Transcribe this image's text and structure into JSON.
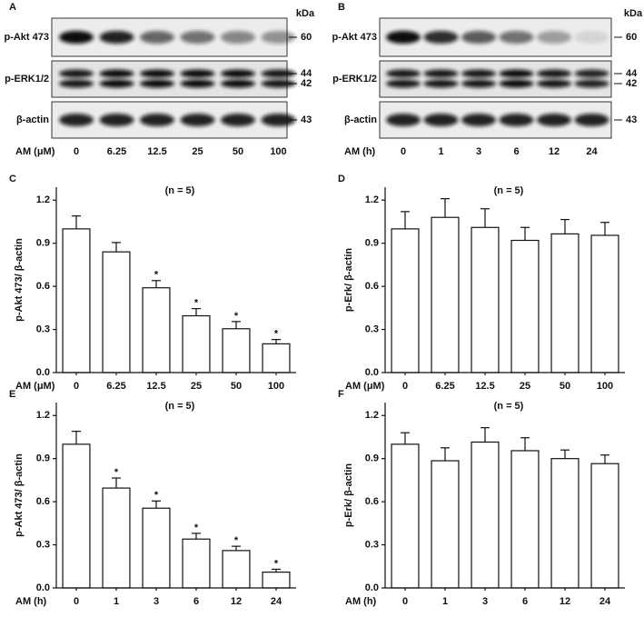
{
  "blots": [
    {
      "panel": "A",
      "unit": "kDa",
      "axis_label": "AM (μM)",
      "lanes": [
        "0",
        "6.25",
        "12.5",
        "25",
        "50",
        "100"
      ],
      "rows": [
        {
          "name": "p-Akt 473",
          "markers": [
            "60"
          ]
        },
        {
          "name": "p-ERK1/2",
          "markers": [
            "44",
            "42"
          ]
        },
        {
          "name": "β-actin",
          "markers": [
            "43"
          ]
        }
      ]
    },
    {
      "panel": "B",
      "unit": "kDa",
      "axis_label": "AM (h)",
      "lanes": [
        "0",
        "1",
        "3",
        "6",
        "12",
        "24"
      ],
      "rows": [
        {
          "name": "p-Akt 473",
          "markers": [
            "60"
          ]
        },
        {
          "name": "p-ERK1/2",
          "markers": [
            "44",
            "42"
          ]
        },
        {
          "name": "β-actin",
          "markers": [
            "43"
          ]
        }
      ]
    }
  ],
  "chart_data": [
    {
      "type": "bar",
      "panel": "C",
      "annotation": "(n = 5)",
      "x_label": "AM (μM)",
      "y_label": "p-Akt 473/ β-actin",
      "categories": [
        "0",
        "6.25",
        "12.5",
        "25",
        "50",
        "100"
      ],
      "values": [
        1.0,
        0.84,
        0.59,
        0.395,
        0.305,
        0.2
      ],
      "errors": [
        0.09,
        0.065,
        0.05,
        0.05,
        0.05,
        0.03
      ],
      "significance": [
        null,
        null,
        "*",
        "*",
        "*",
        "*"
      ],
      "color": "#ffffff",
      "ylim": [
        0,
        1.29
      ],
      "yticks": [
        {
          "value": 0,
          "label": "0.0"
        },
        0.3,
        0.6,
        0.9,
        1.2
      ]
    },
    {
      "type": "bar",
      "panel": "D",
      "annotation": "(n = 5)",
      "x_label": "AM (μM)",
      "y_label": "p-Erk/ β-actin",
      "categories": [
        "0",
        "6.25",
        "12.5",
        "25",
        "50",
        "100"
      ],
      "values": [
        1.0,
        1.08,
        1.01,
        0.92,
        0.965,
        0.955
      ],
      "errors": [
        0.12,
        0.13,
        0.13,
        0.09,
        0.1,
        0.09
      ],
      "significance": [
        null,
        null,
        null,
        null,
        null,
        null
      ],
      "color": "#ffffff",
      "ylim": [
        0,
        1.29
      ],
      "yticks": [
        {
          "value": 0,
          "label": "0.0"
        },
        0.3,
        0.6,
        0.9,
        1.2
      ]
    },
    {
      "type": "bar",
      "panel": "E",
      "annotation": "(n = 5)",
      "x_label": "AM (h)",
      "y_label": "p-Akt 473/ β-actin",
      "categories": [
        "0",
        "1",
        "3",
        "6",
        "12",
        "24"
      ],
      "values": [
        1.0,
        0.695,
        0.555,
        0.34,
        0.26,
        0.11
      ],
      "errors": [
        0.09,
        0.07,
        0.05,
        0.04,
        0.03,
        0.02
      ],
      "significance": [
        null,
        "*",
        "*",
        "*",
        "*",
        "*"
      ],
      "color": "#ffffff",
      "ylim": [
        0,
        1.29
      ],
      "yticks": [
        {
          "value": 0,
          "label": "0.0"
        },
        0.3,
        0.6,
        0.9,
        1.2
      ]
    },
    {
      "type": "bar",
      "panel": "F",
      "annotation": "(n = 5)",
      "x_label": "AM (h)",
      "y_label": "p-Erk/ β-actin",
      "categories": [
        "0",
        "1",
        "3",
        "6",
        "12",
        "24"
      ],
      "values": [
        1.0,
        0.885,
        1.015,
        0.955,
        0.9,
        0.865
      ],
      "errors": [
        0.08,
        0.09,
        0.1,
        0.09,
        0.06,
        0.06
      ],
      "significance": [
        null,
        null,
        null,
        null,
        null,
        null
      ],
      "color": "#ffffff",
      "ylim": [
        0,
        1.29
      ],
      "yticks": [
        {
          "value": 0,
          "label": "0.0"
        },
        0.3,
        0.6,
        0.9,
        1.2
      ]
    }
  ]
}
